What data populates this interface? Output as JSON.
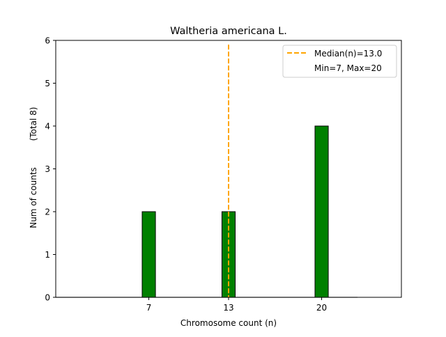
{
  "chart_data": {
    "type": "bar",
    "title": "Waltheria americana L.",
    "xlabel": "Chromosome count (n)",
    "ylabel": "Num of counts",
    "ylabel_secondary": "(Total 8)",
    "x": [
      7,
      13,
      20
    ],
    "values": [
      2,
      2,
      4
    ],
    "bar_width": 1,
    "baseline_range": [
      0,
      22.7
    ],
    "xlim": [
      0,
      26
    ],
    "ylim": [
      0,
      6
    ],
    "xticks": [
      "7",
      "13",
      "20"
    ],
    "yticks": [
      "0",
      "1",
      "2",
      "3",
      "4",
      "5",
      "6"
    ],
    "median": 13.0,
    "grid": false,
    "legend_position": "top-right",
    "legend": [
      "Median(n)=13.0",
      "Min=7, Max=20"
    ],
    "colors": {
      "bar": "#008000",
      "median": "#FFA500",
      "edge": "#000000"
    }
  }
}
